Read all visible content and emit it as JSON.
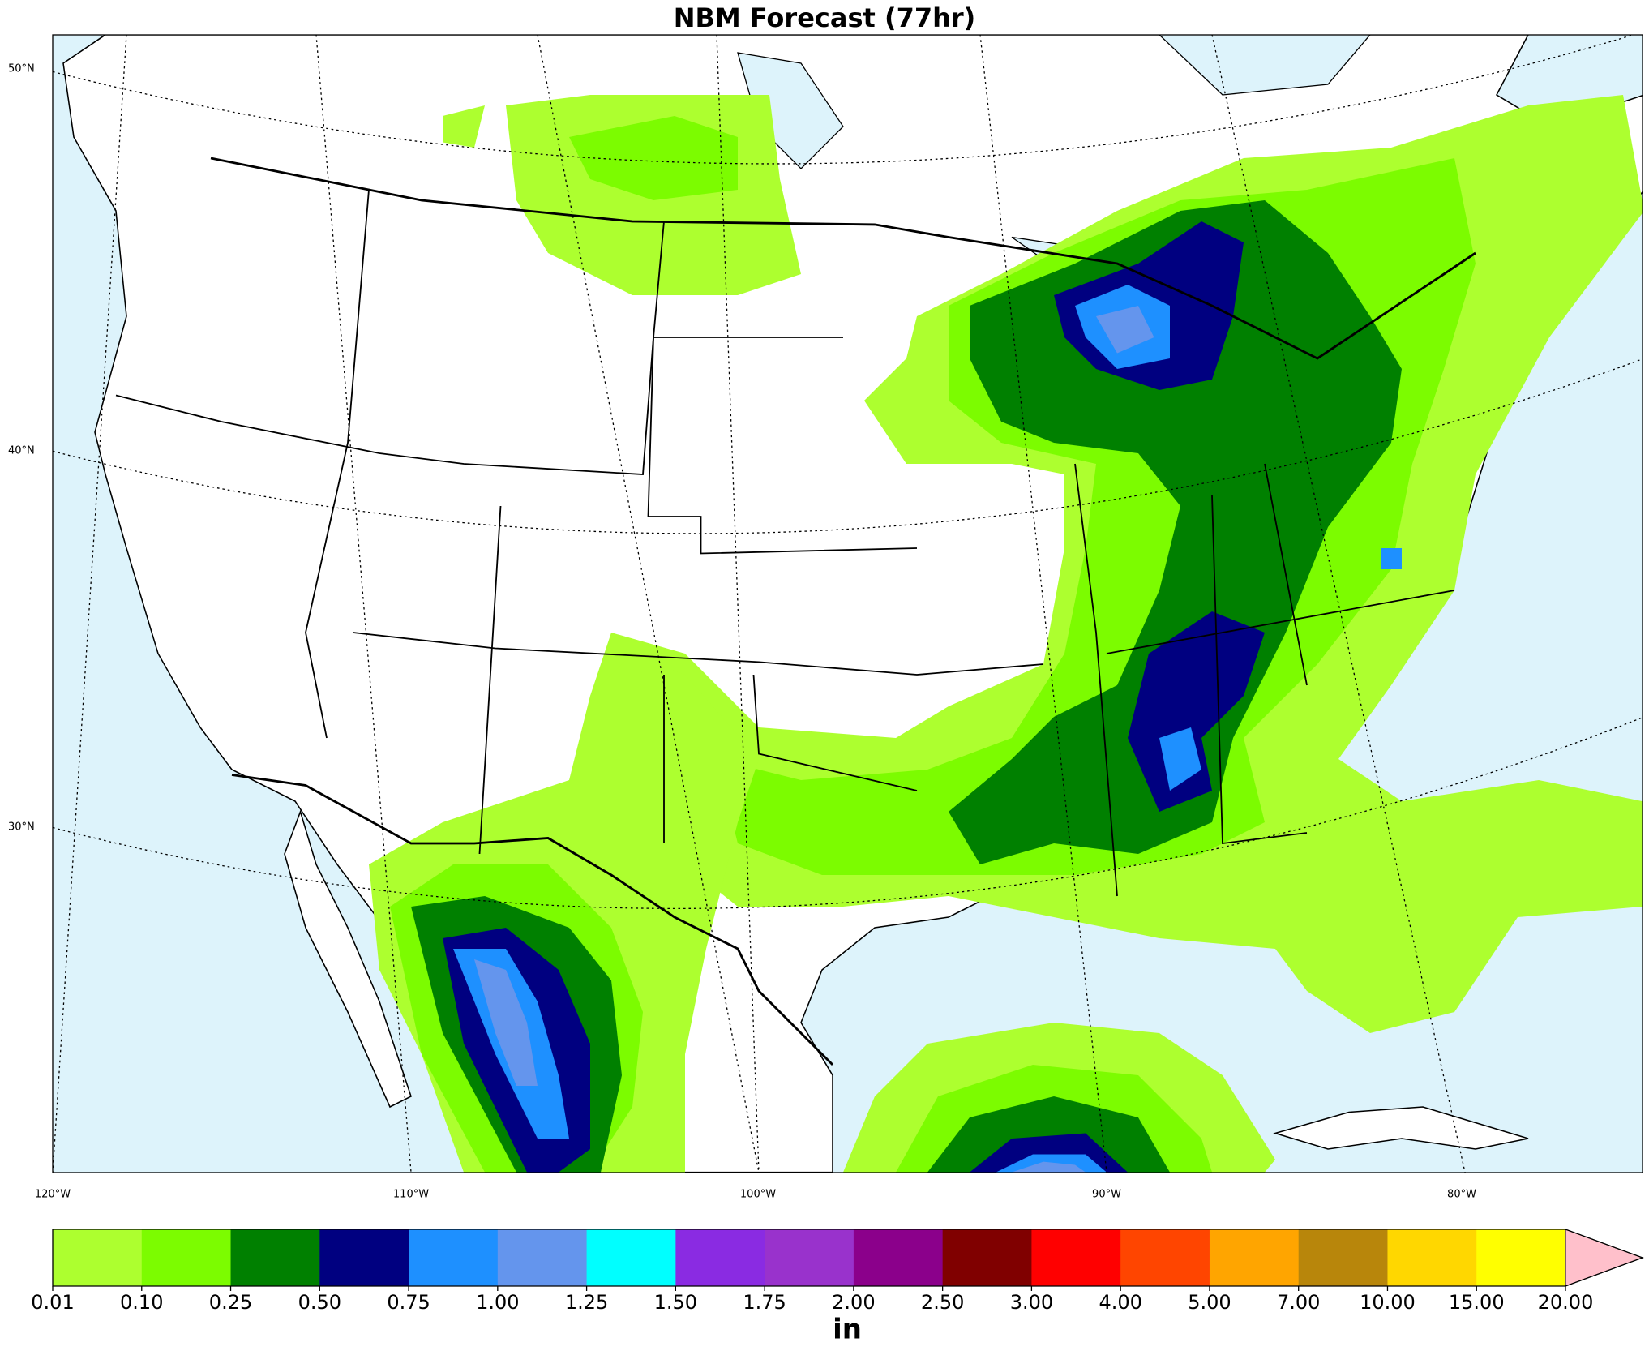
{
  "map": {
    "title": "NBM Forecast (77hr)",
    "lat_labels": [
      "50°N",
      "40°N",
      "30°N"
    ],
    "lon_labels": [
      "120°W",
      "110°W",
      "100°W",
      "90°W",
      "80°W"
    ]
  },
  "colorbar": {
    "label": "in",
    "ticks": [
      0.01,
      {
        "value": 0.1,
        "label": "0.10"
      },
      {
        "value": 0.25,
        "label": "0.25"
      },
      {
        "value": 0.5,
        "label": "0.50"
      },
      {
        "value": 0.75,
        "label": "0.75"
      },
      {
        "value": 1,
        "label": "1.00"
      },
      {
        "value": 1.25,
        "label": "1.25"
      },
      {
        "value": 1.5,
        "label": "1.50"
      },
      {
        "value": 1.75,
        "label": "1.75"
      },
      {
        "value": 2,
        "label": "2.00"
      },
      {
        "value": 2.5,
        "label": "2.50"
      },
      {
        "value": 3,
        "label": "3.00"
      },
      {
        "value": 4,
        "label": "4.00"
      },
      {
        "value": 5,
        "label": "5.00"
      },
      {
        "value": 7,
        "label": "7.00"
      },
      {
        "value": 10,
        "label": "10.00"
      },
      {
        "value": 15,
        "label": "15.00"
      },
      {
        "value": 20,
        "label": "20.00"
      }
    ],
    "colors": [
      "#adff2f",
      "#7cfc00",
      "#008000",
      "#000080",
      "#1e90ff",
      "#6495ed",
      "#00ffff",
      "#8a2be2",
      "#9932cc",
      "#8b008b",
      "#800000",
      "#ff0000",
      "#ff4500",
      "#ffa500",
      "#b8860b",
      "#ffd700",
      "#ffff00"
    ],
    "extend_color": "#ffc0cb"
  }
}
